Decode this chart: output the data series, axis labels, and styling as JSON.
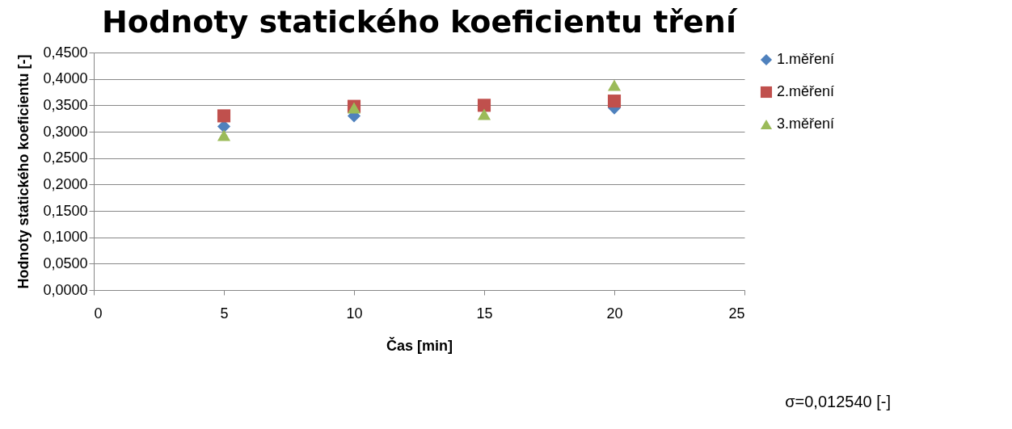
{
  "chart_data": {
    "type": "scatter",
    "title": "Hodnoty statického koeficientu tření",
    "xlabel": "Čas [min]",
    "ylabel": "Hodnoty statického koeficientu [-]",
    "x": [
      5,
      10,
      15,
      20
    ],
    "series": [
      {
        "name": "1.měření",
        "color": "#4f81bd",
        "marker": "diamond",
        "values": [
          0.31,
          0.33,
          null,
          0.345
        ]
      },
      {
        "name": "2.měření",
        "color": "#c0504d",
        "marker": "square",
        "values": [
          0.33,
          0.348,
          0.35,
          0.358
        ]
      },
      {
        "name": "3.měření",
        "color": "#9bbb59",
        "marker": "triangle",
        "values": [
          0.293,
          0.345,
          0.333,
          0.388
        ]
      }
    ],
    "xlim": [
      0,
      25
    ],
    "xticks": [
      0,
      5,
      10,
      15,
      20,
      25
    ],
    "ylim": [
      0,
      0.45
    ],
    "yticks": [
      {
        "value": 0,
        "label": "0,0000"
      },
      {
        "value": 0.05,
        "label": "0,0500"
      },
      {
        "value": 0.1,
        "label": "0,1000"
      },
      {
        "value": 0.15,
        "label": "0,1500"
      },
      {
        "value": 0.2,
        "label": "0,2000"
      },
      {
        "value": 0.25,
        "label": "0,2500"
      },
      {
        "value": 0.3,
        "label": "0,3000"
      },
      {
        "value": 0.35,
        "label": "0,3500"
      },
      {
        "value": 0.4,
        "label": "0,4000"
      },
      {
        "value": 0.45,
        "label": "0,4500"
      }
    ],
    "grid": "y",
    "legend": "right",
    "annotations": [
      "σ=0,012540 [-]"
    ]
  }
}
